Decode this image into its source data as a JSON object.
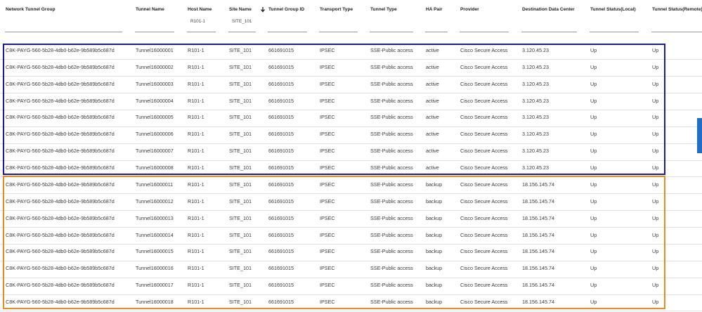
{
  "table": {
    "headers": [
      {
        "label": "Network Tunnel Group"
      },
      {
        "label": "Tunnel Name"
      },
      {
        "label": "Host Name",
        "filter": "R101-1"
      },
      {
        "label": "Site Name",
        "filter": "SITE_101"
      },
      {
        "label": "Tunnel Group ID"
      },
      {
        "label": "Transport Type"
      },
      {
        "label": "Tunnel Type"
      },
      {
        "label": "HA Pair"
      },
      {
        "label": "Provider"
      },
      {
        "label": "Destination Data Center"
      },
      {
        "label": "Tunnel Status(Local)"
      },
      {
        "label": "Tunnel Status(Remote)"
      }
    ],
    "rows": [
      [
        "C8K-PAYG-560-5b28-4db0-b62e-9b589b5c687d",
        "Tunnel16000001",
        "R101-1",
        "SITE_101",
        "661691015",
        "IPSEC",
        "SSE-Public access",
        "active",
        "Cisco Secure Access",
        "3.120.45.23",
        "Up",
        "Up"
      ],
      [
        "C8K-PAYG-560-5b28-4db0-b62e-9b589b5c687d",
        "Tunnel16000002",
        "R101-1",
        "SITE_101",
        "661691015",
        "IPSEC",
        "SSE-Public access",
        "active",
        "Cisco Secure Access",
        "3.120.45.23",
        "Up",
        "Up"
      ],
      [
        "C8K-PAYG-560-5b28-4db0-b62e-9b589b5c687d",
        "Tunnel16000003",
        "R101-1",
        "SITE_101",
        "661691015",
        "IPSEC",
        "SSE-Public access",
        "active",
        "Cisco Secure Access",
        "3.120.45.23",
        "Up",
        "Up"
      ],
      [
        "C8K-PAYG-560-5b28-4db0-b62e-9b589b5c687d",
        "Tunnel16000004",
        "R101-1",
        "SITE_101",
        "661691015",
        "IPSEC",
        "SSE-Public access",
        "active",
        "Cisco Secure Access",
        "3.120.45.23",
        "Up",
        "Up"
      ],
      [
        "C8K-PAYG-560-5b28-4db0-b62e-9b589b5c687d",
        "Tunnel16000005",
        "R101-1",
        "SITE_101",
        "661691015",
        "IPSEC",
        "SSE-Public access",
        "active",
        "Cisco Secure Access",
        "3.120.45.23",
        "Up",
        "Up"
      ],
      [
        "C8K-PAYG-560-5b28-4db0-b62e-9b589b5c687d",
        "Tunnel16000006",
        "R101-1",
        "SITE_101",
        "661691015",
        "IPSEC",
        "SSE-Public access",
        "active",
        "Cisco Secure Access",
        "3.120.45.23",
        "Up",
        "Up"
      ],
      [
        "C8K-PAYG-560-5b28-4db0-b62e-9b589b5c687d",
        "Tunnel16000007",
        "R101-1",
        "SITE_101",
        "661691015",
        "IPSEC",
        "SSE-Public access",
        "active",
        "Cisco Secure Access",
        "3.120.45.23",
        "Up",
        "Up"
      ],
      [
        "C8K-PAYG-560-5b28-4db0-b62e-9b589b5c687d",
        "Tunnel16000008",
        "R101-1",
        "SITE_101",
        "661691015",
        "IPSEC",
        "SSE-Public access",
        "active",
        "Cisco Secure Access",
        "3.120.45.23",
        "Up",
        "Up"
      ],
      [
        "C8K-PAYG-560-5b28-4db0-b62e-9b589b5c687d",
        "Tunnel16000011",
        "R101-1",
        "SITE_101",
        "661691015",
        "IPSEC",
        "SSE-Public access",
        "backup",
        "Cisco Secure Access",
        "18.156.145.74",
        "Up",
        "Up"
      ],
      [
        "C8K-PAYG-560-5b28-4db0-b62e-9b589b5c687d",
        "Tunnel16000012",
        "R101-1",
        "SITE_101",
        "661691015",
        "IPSEC",
        "SSE-Public access",
        "backup",
        "Cisco Secure Access",
        "18.156.145.74",
        "Up",
        "Up"
      ],
      [
        "C8K-PAYG-560-5b28-4db0-b62e-9b589b5c687d",
        "Tunnel16000013",
        "R101-1",
        "SITE_101",
        "661691015",
        "IPSEC",
        "SSE-Public access",
        "backup",
        "Cisco Secure Access",
        "18.156.145.74",
        "Up",
        "Up"
      ],
      [
        "C8K-PAYG-560-5b28-4db0-b62e-9b589b5c687d",
        "Tunnel16000014",
        "R101-1",
        "SITE_101",
        "661691015",
        "IPSEC",
        "SSE-Public access",
        "backup",
        "Cisco Secure Access",
        "18.156.145.74",
        "Up",
        "Up"
      ],
      [
        "C8K-PAYG-560-5b28-4db0-b62e-9b589b5c687d",
        "Tunnel16000015",
        "R101-1",
        "SITE_101",
        "661691015",
        "IPSEC",
        "SSE-Public access",
        "backup",
        "Cisco Secure Access",
        "18.156.145.74",
        "Up",
        "Up"
      ],
      [
        "C8K-PAYG-560-5b28-4db0-b62e-9b589b5c687d",
        "Tunnel16000016",
        "R101-1",
        "SITE_101",
        "661691015",
        "IPSEC",
        "SSE-Public access",
        "backup",
        "Cisco Secure Access",
        "18.156.145.74",
        "Up",
        "Up"
      ],
      [
        "C8K-PAYG-560-5b28-4db0-b62e-9b589b5c687d",
        "Tunnel16000017",
        "R101-1",
        "SITE_101",
        "661691015",
        "IPSEC",
        "SSE-Public access",
        "backup",
        "Cisco Secure Access",
        "18.156.145.74",
        "Up",
        "Up"
      ],
      [
        "C8K-PAYG-560-5b28-4db0-b62e-9b589b5c687d",
        "Tunnel16000018",
        "R101-1",
        "SITE_101",
        "661691015",
        "IPSEC",
        "SSE-Public access",
        "backup",
        "Cisco Secure Access",
        "18.156.145.74",
        "Up",
        "Up"
      ]
    ]
  }
}
